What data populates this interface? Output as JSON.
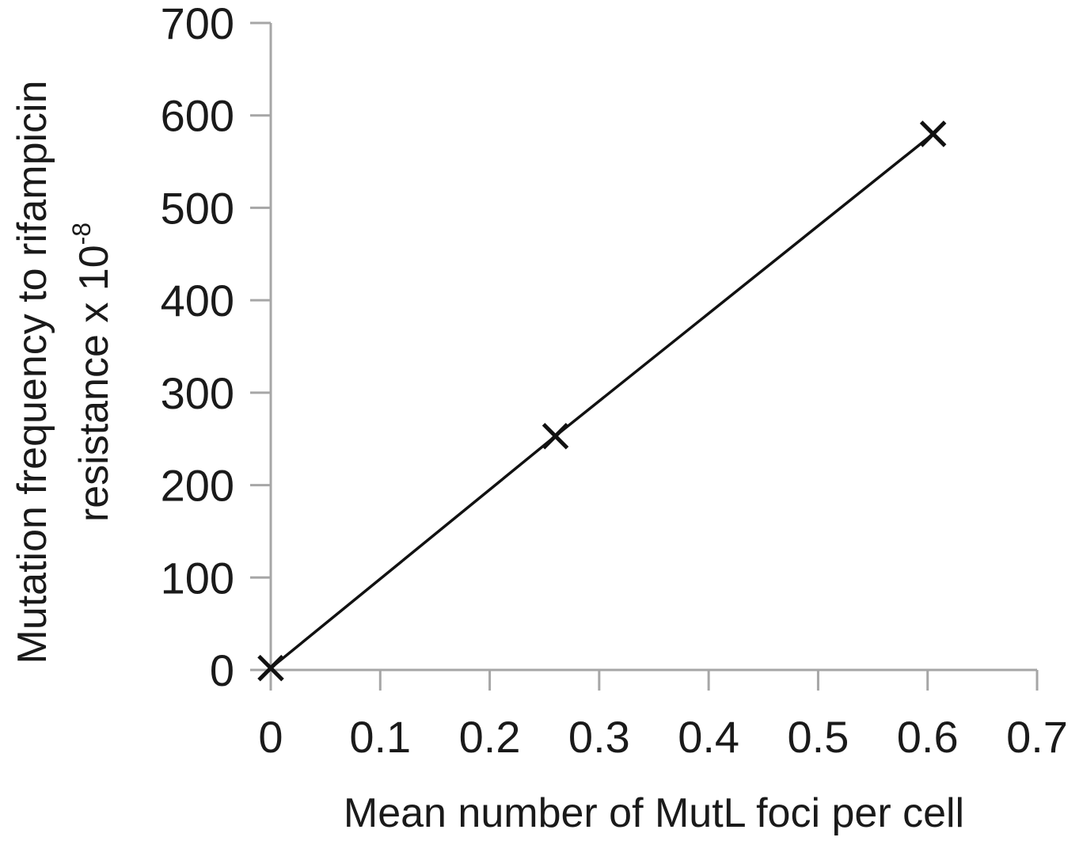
{
  "chart_data": {
    "type": "scatter",
    "title": "",
    "xlabel": "Mean number of MutL foci per cell",
    "ylabel_line1": "Mutation frequency to rifampicin",
    "ylabel_line2": "resistance x 10",
    "ylabel_superscript": "-8",
    "xlim": [
      0,
      0.7
    ],
    "ylim": [
      0,
      700
    ],
    "x_ticks": [
      0,
      0.1,
      0.2,
      0.3,
      0.4,
      0.5,
      0.6,
      0.7
    ],
    "x_tick_labels": [
      "0",
      "0.1",
      "0.2",
      "0.3",
      "0.4",
      "0.5",
      "0.6",
      "0.7"
    ],
    "y_ticks": [
      0,
      100,
      200,
      300,
      400,
      500,
      600,
      700
    ],
    "y_tick_labels": [
      "0",
      "100",
      "200",
      "300",
      "400",
      "500",
      "600",
      "700"
    ],
    "series": [
      {
        "marker": "x",
        "line": "connected",
        "points": [
          {
            "x": 0.0,
            "y": 2
          },
          {
            "x": 0.26,
            "y": 253
          },
          {
            "x": 0.605,
            "y": 580
          }
        ]
      }
    ],
    "grid": false,
    "legend": "none",
    "colors": {
      "axis": "#a6a6a6",
      "series": "#111111",
      "text": "#1a1a1a"
    }
  }
}
